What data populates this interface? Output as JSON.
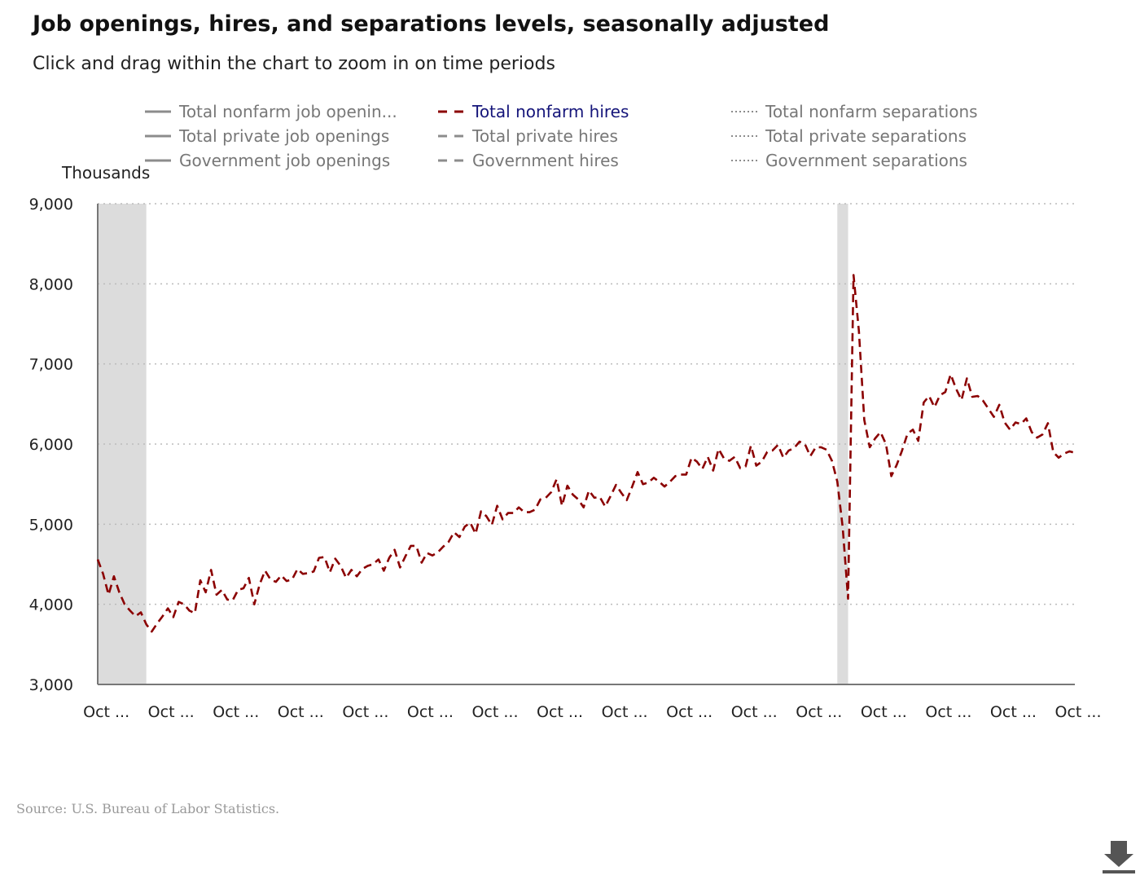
{
  "title": "Job openings, hires, and separations levels, seasonally adjusted",
  "subtitle": "Click and drag within the chart to zoom in on time periods",
  "source": "Source: U.S. Bureau of Labor Statistics.",
  "legend": [
    {
      "label": "Total nonfarm job openin...",
      "style": "solid",
      "color": "#8c8c8c",
      "active": false
    },
    {
      "label": "Total nonfarm hires",
      "style": "dashed",
      "color": "#8b0000",
      "active": true
    },
    {
      "label": "Total nonfarm separations",
      "style": "dotted",
      "color": "#8c8c8c",
      "active": false
    },
    {
      "label": "Total private job openings",
      "style": "solid",
      "color": "#8c8c8c",
      "active": false
    },
    {
      "label": "Total private hires",
      "style": "dashed",
      "color": "#8c8c8c",
      "active": false
    },
    {
      "label": "Total private separations",
      "style": "dotted",
      "color": "#8c8c8c",
      "active": false
    },
    {
      "label": "Government job openings",
      "style": "solid",
      "color": "#8c8c8c",
      "active": false
    },
    {
      "label": "Government hires",
      "style": "dashed",
      "color": "#8c8c8c",
      "active": false
    },
    {
      "label": "Government separations",
      "style": "dotted",
      "color": "#8c8c8c",
      "active": false
    }
  ],
  "icons": {
    "download": "download-icon"
  },
  "chart_data": {
    "type": "line",
    "ylabel": "Thousands",
    "ylim": [
      3000,
      9000
    ],
    "yticks": [
      "9,000",
      "8,000",
      "7,000",
      "6,000",
      "5,000",
      "4,000",
      "3,000"
    ],
    "ytick_values": [
      9000,
      8000,
      7000,
      6000,
      5000,
      4000,
      3000
    ],
    "xlim": [
      "2008-09",
      "2023-10"
    ],
    "xticks": [
      "Oct ...",
      "Oct ...",
      "Oct ...",
      "Oct ...",
      "Oct ...",
      "Oct ...",
      "Oct ...",
      "Oct ...",
      "Oct ...",
      "Oct ...",
      "Oct ...",
      "Oct ...",
      "Oct ...",
      "Oct ...",
      "Oct ...",
      "Oct ..."
    ],
    "xtick_values": [
      "2008-10",
      "2009-10",
      "2010-10",
      "2011-10",
      "2012-10",
      "2013-10",
      "2014-10",
      "2015-10",
      "2016-10",
      "2017-10",
      "2018-10",
      "2019-10",
      "2020-10",
      "2021-10",
      "2022-10",
      "2023-10"
    ],
    "grid": true,
    "recessions": [
      [
        "2008-09",
        "2009-06"
      ],
      [
        "2020-02",
        "2020-04"
      ]
    ],
    "series": [
      {
        "name": "Total nonfarm hires",
        "color": "#8b0000",
        "style": "dashed",
        "points": [
          [
            "2008-09",
            4560
          ],
          [
            "2008-10",
            4380
          ],
          [
            "2008-11",
            4120
          ],
          [
            "2008-12",
            4350
          ],
          [
            "2009-01",
            4150
          ],
          [
            "2009-02",
            4000
          ],
          [
            "2009-03",
            3920
          ],
          [
            "2009-04",
            3850
          ],
          [
            "2009-05",
            3900
          ],
          [
            "2009-06",
            3750
          ],
          [
            "2009-07",
            3660
          ],
          [
            "2009-08",
            3760
          ],
          [
            "2009-09",
            3850
          ],
          [
            "2009-10",
            3950
          ],
          [
            "2009-11",
            3840
          ],
          [
            "2009-12",
            4030
          ],
          [
            "2010-01",
            4000
          ],
          [
            "2010-02",
            3920
          ],
          [
            "2010-03",
            3890
          ],
          [
            "2010-04",
            4300
          ],
          [
            "2010-05",
            4150
          ],
          [
            "2010-06",
            4430
          ],
          [
            "2010-07",
            4120
          ],
          [
            "2010-08",
            4180
          ],
          [
            "2010-09",
            4060
          ],
          [
            "2010-10",
            4050
          ],
          [
            "2010-11",
            4180
          ],
          [
            "2010-12",
            4200
          ],
          [
            "2011-01",
            4330
          ],
          [
            "2011-02",
            4000
          ],
          [
            "2011-03",
            4250
          ],
          [
            "2011-04",
            4420
          ],
          [
            "2011-05",
            4310
          ],
          [
            "2011-06",
            4280
          ],
          [
            "2011-07",
            4360
          ],
          [
            "2011-08",
            4290
          ],
          [
            "2011-09",
            4310
          ],
          [
            "2011-10",
            4440
          ],
          [
            "2011-11",
            4380
          ],
          [
            "2011-12",
            4390
          ],
          [
            "2012-01",
            4410
          ],
          [
            "2012-02",
            4580
          ],
          [
            "2012-03",
            4590
          ],
          [
            "2012-04",
            4400
          ],
          [
            "2012-05",
            4570
          ],
          [
            "2012-06",
            4480
          ],
          [
            "2012-07",
            4330
          ],
          [
            "2012-08",
            4430
          ],
          [
            "2012-09",
            4350
          ],
          [
            "2012-10",
            4440
          ],
          [
            "2012-11",
            4480
          ],
          [
            "2012-12",
            4500
          ],
          [
            "2013-01",
            4560
          ],
          [
            "2013-02",
            4420
          ],
          [
            "2013-03",
            4580
          ],
          [
            "2013-04",
            4680
          ],
          [
            "2013-05",
            4460
          ],
          [
            "2013-06",
            4600
          ],
          [
            "2013-07",
            4730
          ],
          [
            "2013-08",
            4730
          ],
          [
            "2013-09",
            4520
          ],
          [
            "2013-10",
            4640
          ],
          [
            "2013-11",
            4610
          ],
          [
            "2013-12",
            4650
          ],
          [
            "2014-01",
            4720
          ],
          [
            "2014-02",
            4780
          ],
          [
            "2014-03",
            4900
          ],
          [
            "2014-04",
            4840
          ],
          [
            "2014-05",
            4970
          ],
          [
            "2014-06",
            5020
          ],
          [
            "2014-07",
            4880
          ],
          [
            "2014-08",
            5160
          ],
          [
            "2014-09",
            5100
          ],
          [
            "2014-10",
            4990
          ],
          [
            "2014-11",
            5230
          ],
          [
            "2014-12",
            5060
          ],
          [
            "2015-01",
            5140
          ],
          [
            "2015-02",
            5140
          ],
          [
            "2015-03",
            5210
          ],
          [
            "2015-04",
            5150
          ],
          [
            "2015-05",
            5150
          ],
          [
            "2015-06",
            5180
          ],
          [
            "2015-07",
            5310
          ],
          [
            "2015-08",
            5330
          ],
          [
            "2015-09",
            5400
          ],
          [
            "2015-10",
            5560
          ],
          [
            "2015-11",
            5230
          ],
          [
            "2015-12",
            5480
          ],
          [
            "2016-01",
            5370
          ],
          [
            "2016-02",
            5310
          ],
          [
            "2016-03",
            5210
          ],
          [
            "2016-04",
            5420
          ],
          [
            "2016-05",
            5330
          ],
          [
            "2016-06",
            5340
          ],
          [
            "2016-07",
            5220
          ],
          [
            "2016-08",
            5350
          ],
          [
            "2016-09",
            5490
          ],
          [
            "2016-10",
            5390
          ],
          [
            "2016-11",
            5300
          ],
          [
            "2016-12",
            5470
          ],
          [
            "2017-01",
            5650
          ],
          [
            "2017-02",
            5500
          ],
          [
            "2017-03",
            5520
          ],
          [
            "2017-04",
            5580
          ],
          [
            "2017-05",
            5530
          ],
          [
            "2017-06",
            5470
          ],
          [
            "2017-07",
            5530
          ],
          [
            "2017-08",
            5600
          ],
          [
            "2017-09",
            5620
          ],
          [
            "2017-10",
            5620
          ],
          [
            "2017-11",
            5830
          ],
          [
            "2017-12",
            5780
          ],
          [
            "2018-01",
            5690
          ],
          [
            "2018-02",
            5840
          ],
          [
            "2018-03",
            5670
          ],
          [
            "2018-04",
            5940
          ],
          [
            "2018-05",
            5820
          ],
          [
            "2018-06",
            5790
          ],
          [
            "2018-07",
            5840
          ],
          [
            "2018-08",
            5700
          ],
          [
            "2018-09",
            5720
          ],
          [
            "2018-10",
            5980
          ],
          [
            "2018-11",
            5730
          ],
          [
            "2018-12",
            5780
          ],
          [
            "2019-01",
            5900
          ],
          [
            "2019-02",
            5920
          ],
          [
            "2019-03",
            5990
          ],
          [
            "2019-04",
            5830
          ],
          [
            "2019-05",
            5920
          ],
          [
            "2019-06",
            5950
          ],
          [
            "2019-07",
            6030
          ],
          [
            "2019-08",
            6000
          ],
          [
            "2019-09",
            5850
          ],
          [
            "2019-10",
            5960
          ],
          [
            "2019-11",
            5960
          ],
          [
            "2019-12",
            5930
          ],
          [
            "2020-01",
            5790
          ],
          [
            "2020-02",
            5530
          ],
          [
            "2020-03",
            4960
          ],
          [
            "2020-04",
            4070
          ],
          [
            "2020-05",
            8110
          ],
          [
            "2020-06",
            7410
          ],
          [
            "2020-07",
            6300
          ],
          [
            "2020-08",
            5960
          ],
          [
            "2020-09",
            6070
          ],
          [
            "2020-10",
            6150
          ],
          [
            "2020-11",
            6000
          ],
          [
            "2020-12",
            5600
          ],
          [
            "2021-01",
            5740
          ],
          [
            "2021-02",
            5920
          ],
          [
            "2021-03",
            6130
          ],
          [
            "2021-04",
            6180
          ],
          [
            "2021-05",
            6040
          ],
          [
            "2021-06",
            6520
          ],
          [
            "2021-07",
            6600
          ],
          [
            "2021-08",
            6460
          ],
          [
            "2021-09",
            6610
          ],
          [
            "2021-10",
            6650
          ],
          [
            "2021-11",
            6870
          ],
          [
            "2021-12",
            6690
          ],
          [
            "2022-01",
            6550
          ],
          [
            "2022-02",
            6820
          ],
          [
            "2022-03",
            6590
          ],
          [
            "2022-04",
            6600
          ],
          [
            "2022-05",
            6540
          ],
          [
            "2022-06",
            6440
          ],
          [
            "2022-07",
            6340
          ],
          [
            "2022-08",
            6490
          ],
          [
            "2022-09",
            6270
          ],
          [
            "2022-10",
            6180
          ],
          [
            "2022-11",
            6270
          ],
          [
            "2022-12",
            6250
          ],
          [
            "2023-01",
            6320
          ],
          [
            "2023-02",
            6150
          ],
          [
            "2023-03",
            6080
          ],
          [
            "2023-04",
            6120
          ],
          [
            "2023-05",
            6260
          ],
          [
            "2023-06",
            5900
          ],
          [
            "2023-07",
            5830
          ],
          [
            "2023-08",
            5880
          ],
          [
            "2023-09",
            5910
          ],
          [
            "2023-10",
            5890
          ]
        ]
      }
    ]
  }
}
